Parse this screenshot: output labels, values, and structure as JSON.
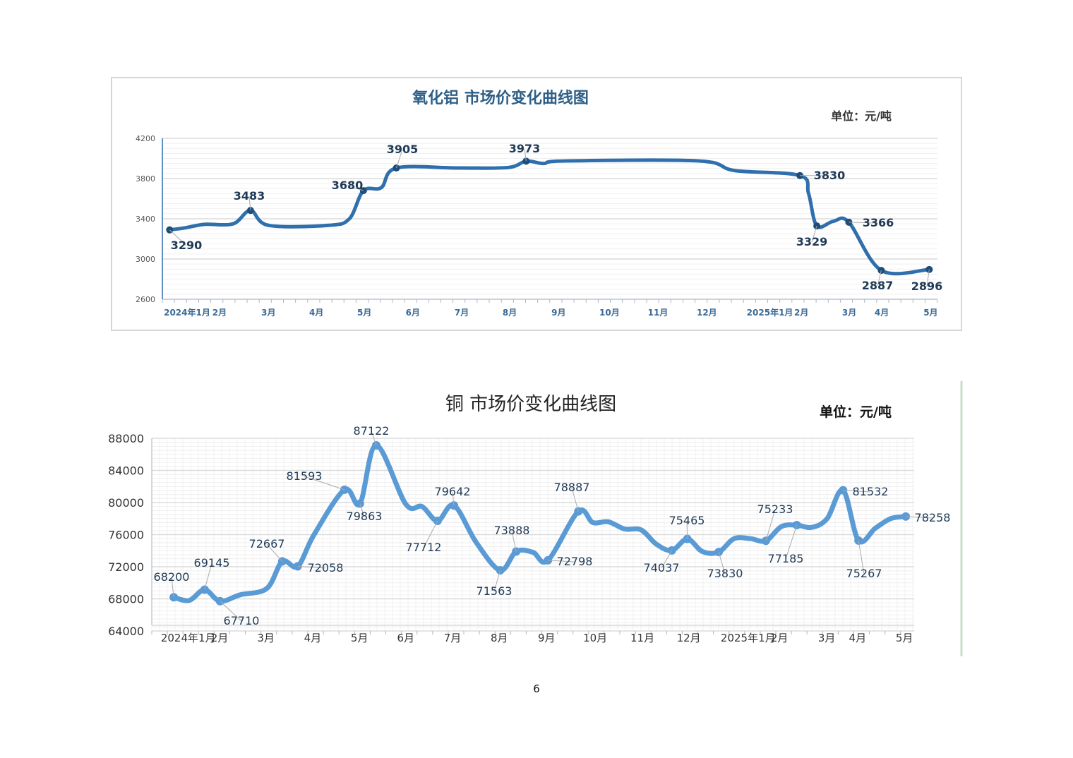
{
  "page_number": "6",
  "colors": {
    "chart1_line": "#2f6fad",
    "chart1_marker": "#1d4d7a",
    "chart2_line": "#5b9bd5"
  },
  "chart_data": [
    {
      "type": "line",
      "title": "氧化铝  市场价变化曲线图",
      "unit": "单位：元/吨",
      "xlabel": "",
      "ylabel": "",
      "x_unit": "months since 2024-01 (approx.)",
      "xlim": [
        0,
        16
      ],
      "ylim": [
        2600,
        4200
      ],
      "yticks": [
        2600,
        3000,
        3400,
        3800,
        4200
      ],
      "xticks": [
        {
          "x": 0.51,
          "label": "2024年1月"
        },
        {
          "x": 1.18,
          "label": "2月"
        },
        {
          "x": 2.19,
          "label": "3月"
        },
        {
          "x": 3.18,
          "label": "4月"
        },
        {
          "x": 4.17,
          "label": "5月"
        },
        {
          "x": 5.17,
          "label": "6月"
        },
        {
          "x": 6.18,
          "label": "7月"
        },
        {
          "x": 7.17,
          "label": "8月"
        },
        {
          "x": 8.18,
          "label": "9月"
        },
        {
          "x": 9.23,
          "label": "10月"
        },
        {
          "x": 10.23,
          "label": "11月"
        },
        {
          "x": 11.24,
          "label": "12月"
        },
        {
          "x": 12.54,
          "label": "2025年1月"
        },
        {
          "x": 13.19,
          "label": "2月"
        },
        {
          "x": 14.18,
          "label": "3月"
        },
        {
          "x": 14.85,
          "label": "4月"
        },
        {
          "x": 15.86,
          "label": "5月"
        }
      ],
      "grid": true,
      "series": [
        {
          "name": "氧化铝",
          "points": [
            {
              "x": 0.15,
              "y": 3290,
              "label": "3290"
            },
            {
              "x": 0.47,
              "y": 3310
            },
            {
              "x": 0.87,
              "y": 3345
            },
            {
              "x": 1.46,
              "y": 3350
            },
            {
              "x": 1.82,
              "y": 3483,
              "label": "3483"
            },
            {
              "x": 2.19,
              "y": 3335
            },
            {
              "x": 3.43,
              "y": 3335
            },
            {
              "x": 3.86,
              "y": 3400
            },
            {
              "x": 4.15,
              "y": 3680,
              "label": "3680"
            },
            {
              "x": 4.52,
              "y": 3710
            },
            {
              "x": 4.83,
              "y": 3905,
              "label": "3905"
            },
            {
              "x": 6.12,
              "y": 3905
            },
            {
              "x": 7.14,
              "y": 3910
            },
            {
              "x": 7.51,
              "y": 3973,
              "label": "3973"
            },
            {
              "x": 7.87,
              "y": 3950
            },
            {
              "x": 8.31,
              "y": 3975
            },
            {
              "x": 11.08,
              "y": 3975
            },
            {
              "x": 11.81,
              "y": 3880
            },
            {
              "x": 13.16,
              "y": 3830,
              "label": "3830"
            },
            {
              "x": 13.34,
              "y": 3650
            },
            {
              "x": 13.51,
              "y": 3329,
              "label": "3329"
            },
            {
              "x": 13.85,
              "y": 3375
            },
            {
              "x": 14.17,
              "y": 3366,
              "label": "3366"
            },
            {
              "x": 14.84,
              "y": 2887,
              "label": "2887"
            },
            {
              "x": 15.83,
              "y": 2896,
              "label": "2896"
            }
          ]
        }
      ]
    },
    {
      "type": "line",
      "title": "铜 市场价变化曲线图",
      "unit": "单位：元/吨",
      "xlabel": "",
      "ylabel": "",
      "x_unit": "months since 2024-01 (approx.)",
      "xlim": [
        0,
        16.3
      ],
      "ylim": [
        64000,
        88000
      ],
      "yticks": [
        64000,
        68000,
        72000,
        76000,
        80000,
        84000,
        88000
      ],
      "xticks": [
        {
          "x": 0.78,
          "label": "2024年1月"
        },
        {
          "x": 1.45,
          "label": "2月"
        },
        {
          "x": 2.44,
          "label": "3月"
        },
        {
          "x": 3.44,
          "label": "4月"
        },
        {
          "x": 4.44,
          "label": "5月"
        },
        {
          "x": 5.43,
          "label": "6月"
        },
        {
          "x": 6.43,
          "label": "7月"
        },
        {
          "x": 7.43,
          "label": "8月"
        },
        {
          "x": 8.44,
          "label": "9月"
        },
        {
          "x": 9.48,
          "label": "10月"
        },
        {
          "x": 10.49,
          "label": "11月"
        },
        {
          "x": 11.48,
          "label": "12月"
        },
        {
          "x": 12.75,
          "label": "2025年1月"
        },
        {
          "x": 13.42,
          "label": "2月"
        },
        {
          "x": 14.43,
          "label": "3月"
        },
        {
          "x": 15.09,
          "label": "4月"
        },
        {
          "x": 16.09,
          "label": "5月"
        }
      ],
      "grid": true,
      "series": [
        {
          "name": "铜",
          "points": [
            {
              "x": 0.47,
              "y": 68200,
              "label": "68200"
            },
            {
              "x": 0.8,
              "y": 67800
            },
            {
              "x": 1.13,
              "y": 69145,
              "label": "69145"
            },
            {
              "x": 1.46,
              "y": 67710,
              "label": "67710"
            },
            {
              "x": 1.89,
              "y": 68500
            },
            {
              "x": 2.46,
              "y": 69300
            },
            {
              "x": 2.79,
              "y": 72667,
              "label": "72667"
            },
            {
              "x": 3.12,
              "y": 72058,
              "label": "72058"
            },
            {
              "x": 3.47,
              "y": 76000
            },
            {
              "x": 4.12,
              "y": 81593,
              "label": "81593"
            },
            {
              "x": 4.45,
              "y": 79863,
              "label": "79863"
            },
            {
              "x": 4.8,
              "y": 87122,
              "label": "87122"
            },
            {
              "x": 5.43,
              "y": 79800
            },
            {
              "x": 5.78,
              "y": 79500
            },
            {
              "x": 6.11,
              "y": 77712,
              "label": "77712"
            },
            {
              "x": 6.46,
              "y": 79642,
              "label": "79642"
            },
            {
              "x": 6.94,
              "y": 75000
            },
            {
              "x": 7.45,
              "y": 71563,
              "label": "71563"
            },
            {
              "x": 7.79,
              "y": 73888,
              "label": "73888"
            },
            {
              "x": 8.15,
              "y": 73800
            },
            {
              "x": 8.47,
              "y": 72798,
              "label": "72798"
            },
            {
              "x": 9.12,
              "y": 78887,
              "label": "78887"
            },
            {
              "x": 9.43,
              "y": 77500
            },
            {
              "x": 9.76,
              "y": 77600
            },
            {
              "x": 10.11,
              "y": 76700
            },
            {
              "x": 10.46,
              "y": 76600
            },
            {
              "x": 10.79,
              "y": 74800
            },
            {
              "x": 11.12,
              "y": 74037,
              "label": "74037"
            },
            {
              "x": 11.45,
              "y": 75465,
              "label": "75465"
            },
            {
              "x": 11.77,
              "y": 73900
            },
            {
              "x": 12.12,
              "y": 73830,
              "label": "73830"
            },
            {
              "x": 12.45,
              "y": 75500
            },
            {
              "x": 12.8,
              "y": 75500
            },
            {
              "x": 13.13,
              "y": 75233,
              "label": "75233"
            },
            {
              "x": 13.46,
              "y": 77000
            },
            {
              "x": 13.79,
              "y": 77185,
              "label": "77185"
            },
            {
              "x": 14.11,
              "y": 76900
            },
            {
              "x": 14.44,
              "y": 78000
            },
            {
              "x": 14.78,
              "y": 81532,
              "label": "81532"
            },
            {
              "x": 15.11,
              "y": 75267,
              "label": "75267"
            },
            {
              "x": 15.47,
              "y": 76800
            },
            {
              "x": 15.8,
              "y": 78000
            },
            {
              "x": 16.12,
              "y": 78258,
              "label": "78258"
            }
          ]
        }
      ]
    }
  ]
}
